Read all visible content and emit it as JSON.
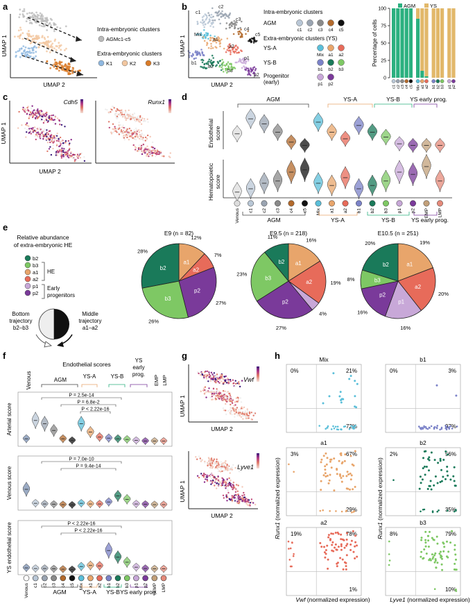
{
  "figure": {
    "panel_labels": [
      "a",
      "b",
      "c",
      "d",
      "e",
      "f",
      "g",
      "h"
    ]
  },
  "colors": {
    "AGM": "#2bb07f",
    "YS": "#e2b86a",
    "c1": "#b9c7d6",
    "c2": "#9aa4b1",
    "c3": "#8a8a8a",
    "c4": "#b36a2c",
    "c5": "#111111",
    "Mix": "#5bbfd9",
    "a1": "#e8a56b",
    "a2": "#e76b5a",
    "b1": "#7b82c8",
    "b2": "#1a7a5a",
    "b3": "#7ec864",
    "p1": "#c8a8d8",
    "p2": "#7a3a9a",
    "EMP": "#c2a07a",
    "LMP": "#e58a7a",
    "K1": "#8fb8e0",
    "K2": "#f2c7a0",
    "K3": "#d97b28",
    "grey": "#bbbbbb"
  },
  "panel_a": {
    "xlabel": "UMAP 2",
    "ylabel": "UMAP 1",
    "legend_intra_title": "Intra-embryonic clusters",
    "legend_intra_item": "AGMc1-c5",
    "legend_extra_title": "Extra-embryonic clusters",
    "legend_extra_items": [
      "K1",
      "K2",
      "K3"
    ]
  },
  "panel_b": {
    "xlabel": "UMAP 2",
    "ylabel": "UMAP 1",
    "cluster_labels": [
      "c1",
      "c2",
      "c3",
      "c4",
      "c5",
      "Mix",
      "a1",
      "a2",
      "b1",
      "b2",
      "b3",
      "p1",
      "p2"
    ],
    "legend_intra_title": "Intra-embryonic clusters",
    "legend_extra_title": "Extra-embryonic clusters (YS)",
    "row_agm": "AGM",
    "row_ysa": "YS-A",
    "row_ysb": "YS-B",
    "row_prog": "Progenitor",
    "row_prog_sub": "(early)",
    "agm_items": [
      "c1",
      "c2",
      "c3",
      "c4",
      "c5"
    ],
    "ysa_items": [
      "Mix",
      "a1",
      "a2"
    ],
    "ysb_items": [
      "b1",
      "b2",
      "b3"
    ],
    "prog_items": [
      "p1",
      "p2"
    ]
  },
  "chart_data": [
    {
      "type": "bar",
      "stacked": true,
      "title": "",
      "ylabel": "Percentage of cells",
      "ylim": [
        0,
        100
      ],
      "yticks": [
        0,
        25,
        50,
        75,
        100
      ],
      "categories": [
        "c1",
        "c2",
        "c3",
        "c4",
        "c5",
        "Mix",
        "a1",
        "a2",
        "b1",
        "b2",
        "b3",
        "p1",
        "p2"
      ],
      "series": [
        {
          "name": "AGM",
          "values": [
            100,
            100,
            100,
            100,
            100,
            85,
            10,
            2,
            0,
            0,
            0,
            0,
            0
          ]
        },
        {
          "name": "YS",
          "values": [
            0,
            0,
            0,
            0,
            0,
            15,
            90,
            98,
            100,
            100,
            100,
            100,
            100
          ]
        }
      ],
      "legend": [
        "AGM",
        "YS"
      ]
    },
    {
      "type": "pie",
      "title": "E9 (n = 82)",
      "slices": [
        {
          "label": "a1",
          "value": 12
        },
        {
          "label": "a2",
          "value": 7
        },
        {
          "label": "p2",
          "value": 27
        },
        {
          "label": "b3",
          "value": 26
        },
        {
          "label": "b2",
          "value": 28
        }
      ]
    },
    {
      "type": "pie",
      "title": "E9.5 (n = 218)",
      "slices": [
        {
          "label": "a1",
          "value": 16
        },
        {
          "label": "a2",
          "value": 19
        },
        {
          "label": "p1",
          "value": 4
        },
        {
          "label": "p2",
          "value": 27
        },
        {
          "label": "b3",
          "value": 23
        },
        {
          "label": "b2",
          "value": 11
        }
      ]
    },
    {
      "type": "pie",
      "title": "E10.5 (n = 251)",
      "slices": [
        {
          "label": "a1",
          "value": 19
        },
        {
          "label": "a2",
          "value": 20
        },
        {
          "label": "p1",
          "value": 16
        },
        {
          "label": "p2",
          "value": 16
        },
        {
          "label": "b3",
          "value": 8
        },
        {
          "label": "b2",
          "value": 20
        }
      ]
    },
    {
      "type": "violin",
      "title": "Endothelial score / Hematopoietic score",
      "categories": [
        "Venous",
        "c1",
        "c2",
        "c3",
        "c4",
        "c5",
        "Mix",
        "a1",
        "a2",
        "b1",
        "b2",
        "b3",
        "p1",
        "p2",
        "EMP",
        "LMP"
      ],
      "series": [
        {
          "name": "Endothelial score",
          "medians": [
            0.4,
            0.85,
            0.7,
            0.45,
            0.15,
            0.05,
            0.75,
            0.45,
            0.25,
            0.65,
            0.45,
            0.3,
            0.1,
            0.05,
            0.05,
            0.05
          ]
        },
        {
          "name": "Hematopoietic score",
          "medians": [
            0.02,
            0.05,
            0.1,
            0.12,
            0.2,
            0.22,
            0.1,
            0.08,
            0.15,
            0.05,
            0.08,
            0.12,
            0.2,
            0.18,
            0.25,
            0.12
          ]
        }
      ]
    }
  ],
  "panel_c": {
    "genes": [
      "Cdh5",
      "Runx1"
    ],
    "xlabel": "UMAP 2",
    "ylabel": "UMAP 1"
  },
  "panel_d": {
    "groups": [
      "AGM",
      "YS-A",
      "YS-B",
      "YS early prog."
    ],
    "ylabel_top_1": "Endothelial",
    "ylabel_top_2": "score",
    "ylabel_bottom_1": "Hematopoietic",
    "ylabel_bottom_2": "score",
    "bottom_groups": [
      "AGM",
      "YS-A",
      "YS-B",
      "YS early prog."
    ]
  },
  "panel_e": {
    "legend_title_1": "Relative abundance",
    "legend_title_2": "of extra-embryonic HE",
    "legend_items": [
      "b2",
      "b3",
      "a1",
      "a2",
      "p1",
      "p2"
    ],
    "bracket_he": "HE",
    "bracket_early_1": "Early",
    "bracket_early_2": "progenitors",
    "bottom_label_1": "Bottom",
    "bottom_label_2": "trajectory",
    "bottom_label_3": "b2–b3",
    "middle_label_1": "Middle",
    "middle_label_2": "trajectory",
    "middle_label_3": "a1–a2",
    "pies": [
      {
        "title": "E9 (n = 82)",
        "pct_labels": [
          "12%",
          "7%",
          "27%",
          "26%",
          "28%"
        ]
      },
      {
        "title": "E9.5 (n = 218)",
        "pct_labels": [
          "16%",
          "19%",
          "4%",
          "27%",
          "23%",
          "11%"
        ]
      },
      {
        "title": "E10.5 (n = 251)",
        "pct_labels": [
          "19%",
          "20%",
          "16%",
          "16%",
          "8%",
          "20%"
        ]
      }
    ]
  },
  "panel_f": {
    "header": "Endothelial scores",
    "group_venous": "Venous",
    "group_agm": "AGM",
    "group_ysa": "YS-A",
    "group_ysb": "YS-B",
    "group_ysprog_1": "YS",
    "group_ysprog_2": "early",
    "group_ysprog_3": "prog.",
    "group_emp": "EMP",
    "group_lmp": "LMP",
    "rows": [
      {
        "ylabel": "Arterial score",
        "pvals": [
          "P = 2.5e-14",
          "P = 6.8e-2",
          "P < 2.22e-16"
        ]
      },
      {
        "ylabel": "Venous score",
        "pvals": [
          "P = 7.0e-10",
          "P = 9.4e-14"
        ]
      },
      {
        "ylabel": "YS endothelial score",
        "pvals": [
          "P < 2.22e-16",
          "P < 2.22e-16"
        ]
      }
    ],
    "xticks": [
      "Venous",
      "c1",
      "c2",
      "c3",
      "c4",
      "c5",
      "Mix",
      "a1",
      "a2",
      "b1",
      "b2",
      "b3",
      "p1",
      "p2",
      "EMP",
      "LMP"
    ],
    "bottom_groups": [
      "AGM",
      "YS-A",
      "YS-B",
      "YS early prog."
    ]
  },
  "panel_g": {
    "genes": [
      "Vwf",
      "Lyve1"
    ],
    "xlabel": "UMAP 2",
    "ylabel": "UMAP 1"
  },
  "panel_h": {
    "ylabel_gene": "Runx1",
    "ylabel_rest": " (normalized expression)",
    "xlabel_left_gene": "Vwf",
    "xlabel_right_gene": "Lyve1",
    "xlabel_rest": " (normalized expression)",
    "plots": [
      {
        "title": "Mix",
        "tl": "0%",
        "tr": "21%",
        "br": "72%"
      },
      {
        "title": "b1",
        "tl": "0%",
        "tr": "3%",
        "br": "97%"
      },
      {
        "title": "a1",
        "tl": "3%",
        "tr": "67%",
        "br": "29%"
      },
      {
        "title": "b2",
        "tl": "2%",
        "tr": "56%",
        "br": "35%"
      },
      {
        "title": "a2",
        "tl": "19%",
        "tr": "78%",
        "br": "1%"
      },
      {
        "title": "b3",
        "tl": "8%",
        "tr": "79%",
        "br": "10%"
      }
    ]
  }
}
